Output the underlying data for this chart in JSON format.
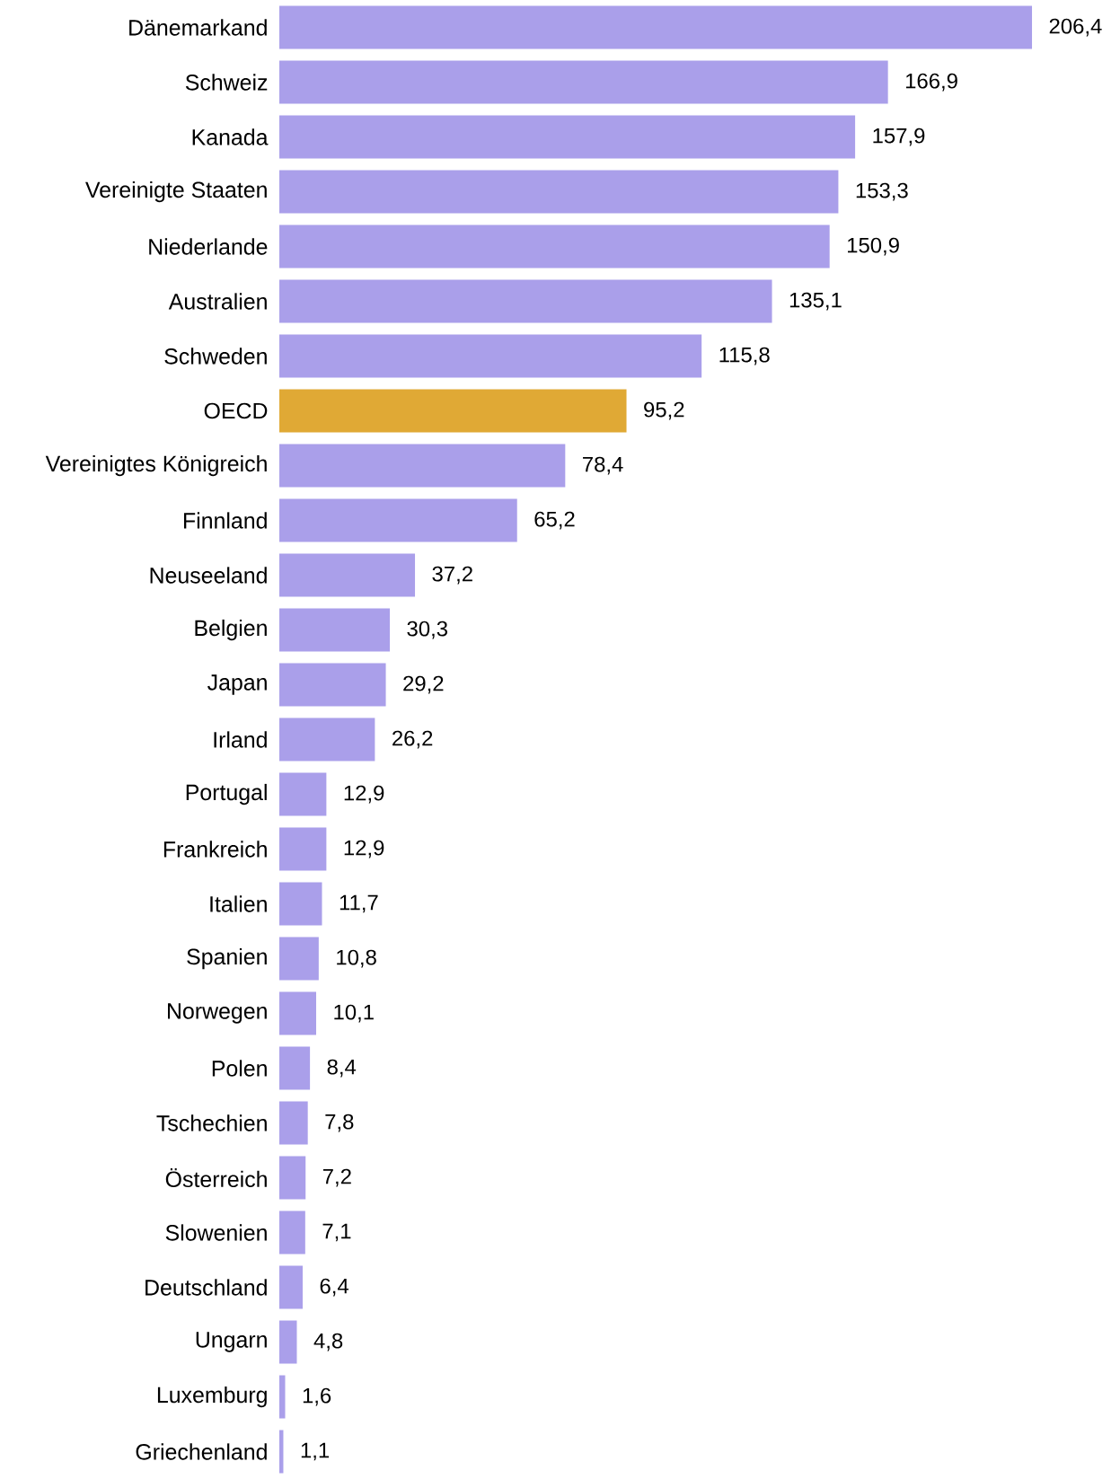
{
  "chart_data": {
    "type": "bar",
    "orientation": "horizontal",
    "tick_labels": "y",
    "categories": [
      "Dänemarkand",
      "Schweiz",
      "Kanada",
      "Vereinigte Staaten",
      "Niederlande",
      "Australien",
      "Schweden",
      "OECD",
      "Vereinigtes Königreich",
      "Finnland",
      "Neuseeland",
      "Belgien",
      "Japan",
      "Irland",
      "Portugal",
      "Frankreich",
      "Italien",
      "Spanien",
      "Norwegen",
      "Polen",
      "Tschechien",
      "Österreich",
      "Slowenien",
      "Deutschland",
      "Ungarn",
      "Luxemburg",
      "Griechenland"
    ],
    "values": [
      206.4,
      166.9,
      157.9,
      153.3,
      150.9,
      135.1,
      115.8,
      95.2,
      78.4,
      65.2,
      37.2,
      30.3,
      29.2,
      26.2,
      12.9,
      12.9,
      11.7,
      10.8,
      10.1,
      8.4,
      7.8,
      7.2,
      7.1,
      6.4,
      4.8,
      1.6,
      1.1
    ],
    "value_labels": [
      "206,4",
      "166,9",
      "157,9",
      "153,3",
      "150,9",
      "135,1",
      "115,8",
      "95,2",
      "78,4",
      "65,2",
      "37,2",
      "30,3",
      "29,2",
      "26,2",
      "12,9",
      "12,9",
      "11,7",
      "10,8",
      "10,1",
      "8,4",
      "7,8",
      "7,2",
      "7,1",
      "6,4",
      "4,8",
      "1,6",
      "1,1"
    ],
    "colors": [
      "#aa9fea",
      "#aa9fea",
      "#aa9fea",
      "#aa9fea",
      "#aa9fea",
      "#aa9fea",
      "#aa9fea",
      "#e0a935",
      "#aa9fea",
      "#aa9fea",
      "#aa9fea",
      "#aa9fea",
      "#aa9fea",
      "#aa9fea",
      "#aa9fea",
      "#aa9fea",
      "#aa9fea",
      "#aa9fea",
      "#aa9fea",
      "#aa9fea",
      "#aa9fea",
      "#aa9fea",
      "#aa9fea",
      "#aa9fea",
      "#aa9fea",
      "#aa9fea",
      "#aa9fea"
    ]
  }
}
